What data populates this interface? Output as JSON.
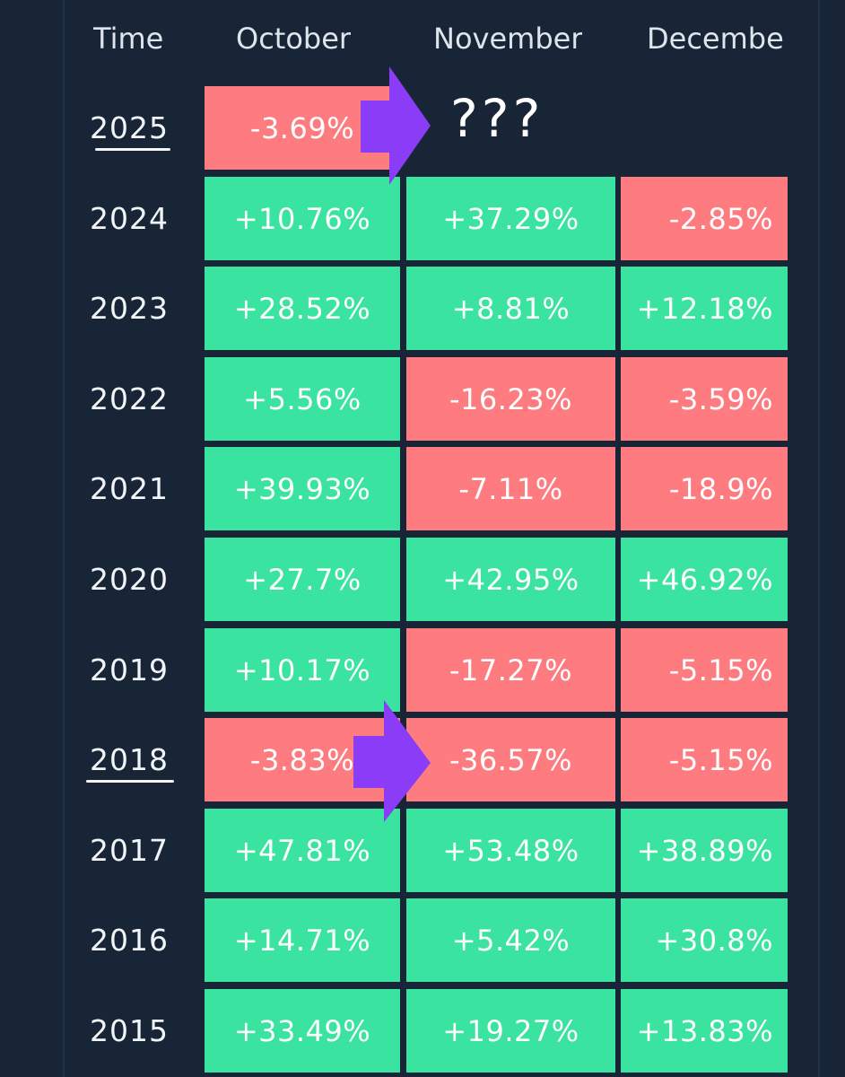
{
  "headers": {
    "time": "Time",
    "october": "October",
    "november": "November",
    "december": "Decembe"
  },
  "annotation": "???",
  "colors": {
    "background": "#172536",
    "positive": "#3ae39f",
    "negative": "#fe7b80",
    "arrow": "#8b3cf6"
  },
  "chart_data": {
    "type": "table",
    "columns": [
      "Time",
      "October",
      "November",
      "Decembe"
    ],
    "rows": [
      {
        "year": "2025",
        "october": "-3.69%",
        "november": "",
        "december": ""
      },
      {
        "year": "2024",
        "october": "+10.76%",
        "november": "+37.29%",
        "december": "-2.85%"
      },
      {
        "year": "2023",
        "october": "+28.52%",
        "november": "+8.81%",
        "december": "+12.18%"
      },
      {
        "year": "2022",
        "october": "+5.56%",
        "november": "-16.23%",
        "december": "-3.59%"
      },
      {
        "year": "2021",
        "october": "+39.93%",
        "november": "-7.11%",
        "december": "-18.9%"
      },
      {
        "year": "2020",
        "october": "+27.7%",
        "november": "+42.95%",
        "december": "+46.92%"
      },
      {
        "year": "2019",
        "october": "+10.17%",
        "november": "-17.27%",
        "december": "-5.15%"
      },
      {
        "year": "2018",
        "october": "-3.83%",
        "november": "-36.57%",
        "december": "-5.15%"
      },
      {
        "year": "2017",
        "october": "+47.81%",
        "november": "+53.48%",
        "december": "+38.89%"
      },
      {
        "year": "2016",
        "october": "+14.71%",
        "november": "+5.42%",
        "december": "+30.8%"
      },
      {
        "year": "2015",
        "october": "+33.49%",
        "november": "+19.27%",
        "december": "+13.83%"
      }
    ]
  }
}
